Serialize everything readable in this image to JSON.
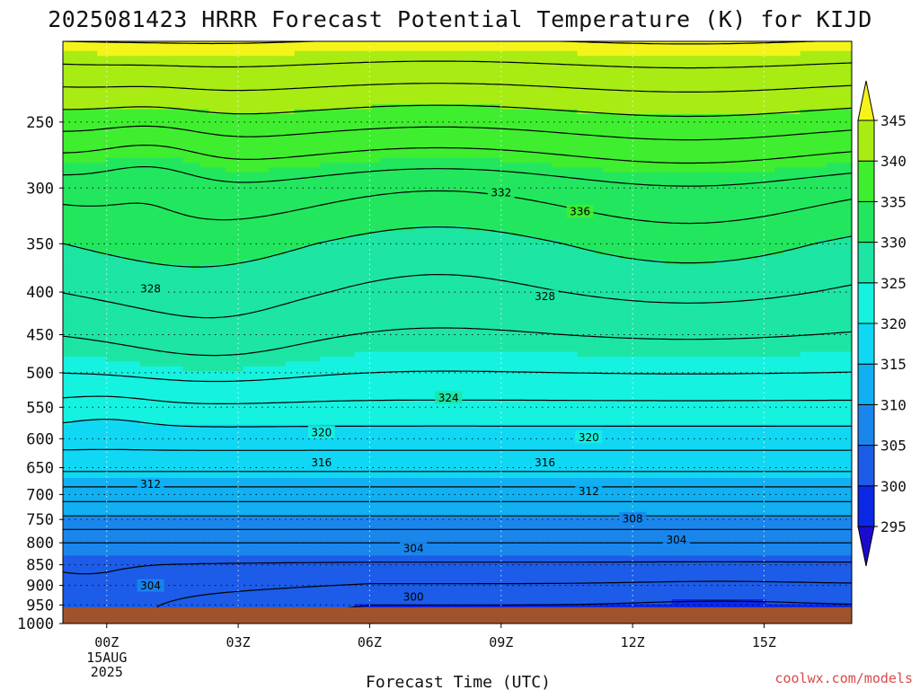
{
  "chart_data": {
    "type": "contour",
    "title": "2025081423 HRRR Forecast Potential Temperature (K) for KIJD",
    "xlabel": "Forecast Time (UTC)",
    "ylabel": "",
    "units": "K",
    "x_ticks": [
      {
        "hour": 0,
        "label": "00Z",
        "sub": [
          "15AUG",
          "2025"
        ]
      },
      {
        "hour": 3,
        "label": "03Z",
        "sub": []
      },
      {
        "hour": 6,
        "label": "06Z",
        "sub": []
      },
      {
        "hour": 9,
        "label": "09Z",
        "sub": []
      },
      {
        "hour": 12,
        "label": "12Z",
        "sub": []
      },
      {
        "hour": 15,
        "label": "15Z",
        "sub": []
      }
    ],
    "xlim": [
      -1,
      17
    ],
    "y_ticks": [
      250,
      300,
      350,
      400,
      450,
      500,
      550,
      600,
      650,
      700,
      750,
      800,
      850,
      900,
      950,
      1000
    ],
    "ylim": [
      200,
      1000
    ],
    "y_scale": "log-pressure (inverted)",
    "grid": true,
    "colorbar": {
      "levels": [
        295,
        300,
        305,
        310,
        315,
        320,
        325,
        330,
        335,
        340,
        345
      ],
      "colors": [
        "#1a0ccf",
        "#0b28e6",
        "#1c5ce8",
        "#1a86ec",
        "#10b0f2",
        "#10d8f4",
        "#16f2e0",
        "#1de5a4",
        "#22e75e",
        "#40ee30",
        "#a8ec14",
        "#f4f41a"
      ],
      "extend": "both",
      "placement": "right"
    },
    "contour_interval": 2,
    "contour_labels": [
      {
        "x": 10.8,
        "p": 320.0,
        "text": "336"
      },
      {
        "x": 9.0,
        "p": 303.5,
        "text": "332"
      },
      {
        "x": 1.0,
        "p": 396.0,
        "text": "328"
      },
      {
        "x": 10.0,
        "p": 404.5,
        "text": "328"
      },
      {
        "x": 7.8,
        "p": 535.5,
        "text": "324"
      },
      {
        "x": 4.9,
        "p": 589.0,
        "text": "320"
      },
      {
        "x": 11.0,
        "p": 597.0,
        "text": "320"
      },
      {
        "x": 4.9,
        "p": 640.0,
        "text": "316"
      },
      {
        "x": 10.0,
        "p": 640.0,
        "text": "316"
      },
      {
        "x": 1.0,
        "p": 680.0,
        "text": "312"
      },
      {
        "x": 11.0,
        "p": 693.5,
        "text": "312"
      },
      {
        "x": 12.0,
        "p": 747.5,
        "text": "308"
      },
      {
        "x": 13.0,
        "p": 793.0,
        "text": "304"
      },
      {
        "x": 7.0,
        "p": 812.0,
        "text": "304"
      },
      {
        "x": 1.0,
        "p": 900.0,
        "text": "304"
      },
      {
        "x": 7.0,
        "p": 928.0,
        "text": "300"
      }
    ],
    "terrain_surface_hpa": 1000,
    "terrain_color": "#a0522d"
  },
  "credit": "coolwx.com/models"
}
